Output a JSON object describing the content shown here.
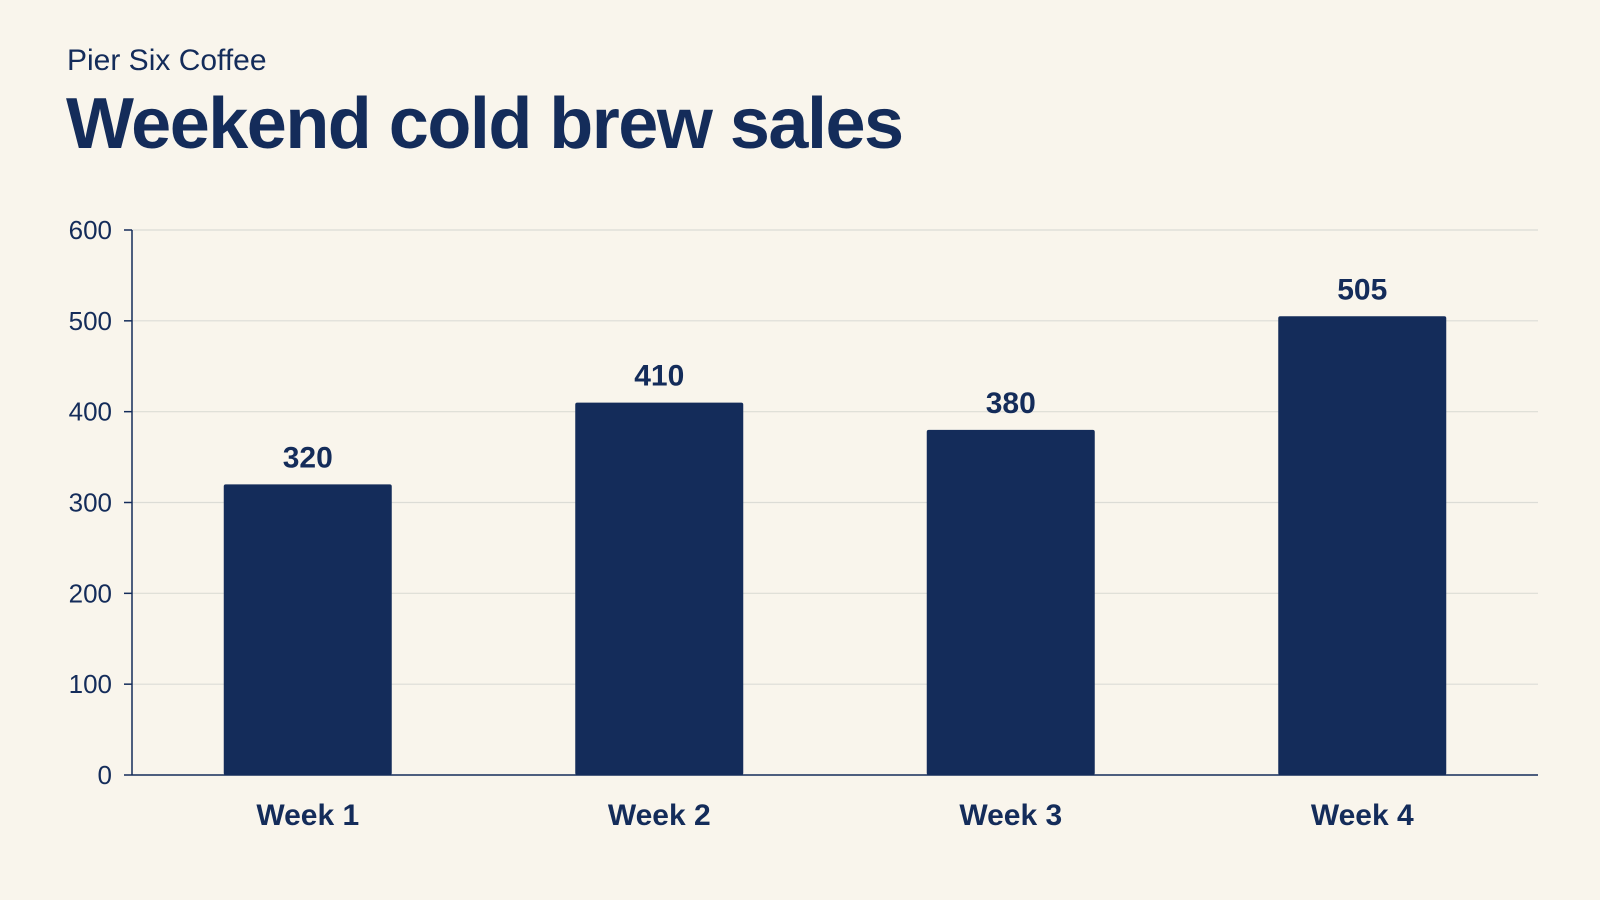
{
  "header": {
    "subtitle": "Pier Six Coffee",
    "title": "Weekend cold brew sales"
  },
  "colors": {
    "background": "#f9f5ec",
    "bar": "#142c5a",
    "text": "#142c5a",
    "grid": "#dcdcd6",
    "axis": "#142c5a"
  },
  "chart_data": {
    "type": "bar",
    "title": "Weekend cold brew sales",
    "subtitle": "Pier Six Coffee",
    "categories": [
      "Week 1",
      "Week 2",
      "Week 3",
      "Week 4"
    ],
    "values": [
      320,
      410,
      380,
      505
    ],
    "data_labels": [
      "320",
      "410",
      "380",
      "505"
    ],
    "xlabel": "",
    "ylabel": "",
    "ylim": [
      0,
      600
    ],
    "yticks": [
      0,
      100,
      200,
      300,
      400,
      500,
      600
    ],
    "grid": true,
    "legend": "none"
  }
}
